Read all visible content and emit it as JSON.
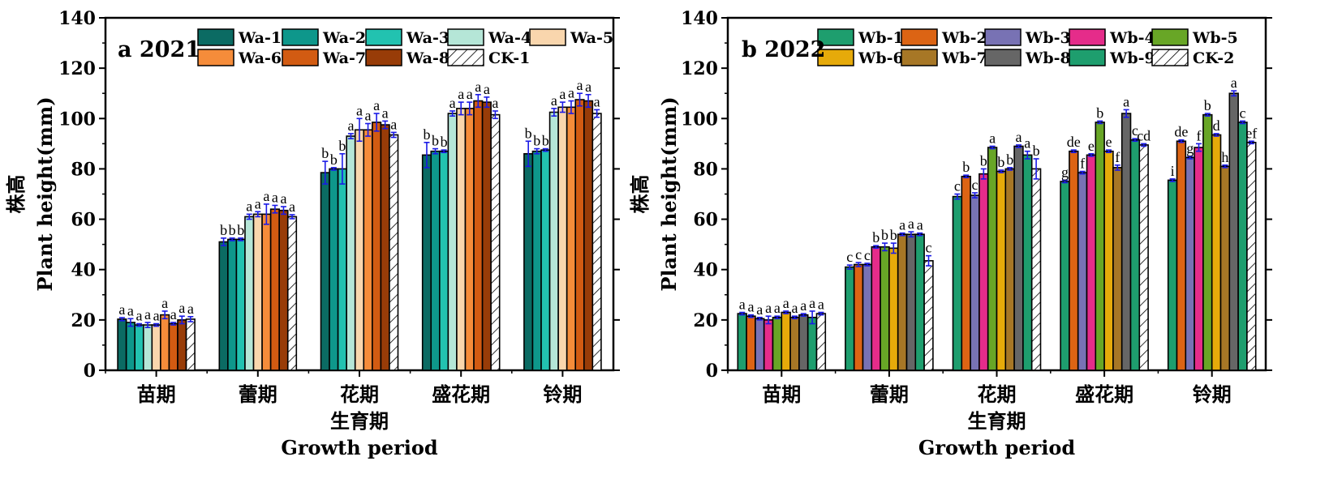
{
  "chart_data": [
    {
      "type": "bar",
      "title": "a 2021",
      "xlabel": "生育期",
      "xlabel_en": "Growth period",
      "ylabel": "株高",
      "ylabel_en": "Plant height(mm)",
      "ylim": [
        0,
        140
      ],
      "yticks": [
        "0",
        "20",
        "40",
        "60",
        "80",
        "100",
        "120",
        "140"
      ],
      "grid": false,
      "legend": "top",
      "categories": [
        "苗期",
        "蕾期",
        "花期",
        "盛花期",
        "铃期"
      ],
      "series": [
        {
          "name": "Wa-1",
          "color": "#0b6b63",
          "pattern": false,
          "values": [
            20.3,
            51.0,
            78.5,
            85.5,
            86.0
          ],
          "errors": [
            0.6,
            1.5,
            4.5,
            5.0,
            5.0
          ],
          "sig": [
            "a",
            "b",
            "b",
            "b",
            "b"
          ]
        },
        {
          "name": "Wa-2",
          "color": "#0e978b",
          "pattern": false,
          "values": [
            19.0,
            52.0,
            80.0,
            87.0,
            87.0
          ],
          "errors": [
            1.5,
            0.5,
            0.5,
            1.0,
            1.0
          ],
          "sig": [
            "a",
            "b",
            "b",
            "b",
            "b"
          ]
        },
        {
          "name": "Wa-3",
          "color": "#22c2b0",
          "pattern": false,
          "values": [
            18.0,
            52.0,
            80.0,
            87.0,
            87.5
          ],
          "errors": [
            0.5,
            0.5,
            6.0,
            0.5,
            0.5
          ],
          "sig": [
            "a",
            "b",
            "b",
            "b",
            "b"
          ]
        },
        {
          "name": "Wa-4",
          "color": "#b5e6d7",
          "pattern": false,
          "values": [
            18.0,
            61.0,
            93.0,
            102.0,
            102.5
          ],
          "errors": [
            1.0,
            1.0,
            1.0,
            1.0,
            1.5
          ],
          "sig": [
            "a",
            "a",
            "a",
            "a",
            "a"
          ]
        },
        {
          "name": "Wa-5",
          "color": "#f9d6ad",
          "pattern": false,
          "values": [
            18.0,
            62.0,
            95.5,
            104.0,
            104.5
          ],
          "errors": [
            0.5,
            1.0,
            4.5,
            2.5,
            2.0
          ],
          "sig": [
            "a",
            "a",
            "a",
            "a",
            "a"
          ]
        },
        {
          "name": "Wa-6",
          "color": "#f58c3a",
          "pattern": false,
          "values": [
            22.0,
            62.0,
            95.5,
            104.0,
            104.5
          ],
          "errors": [
            1.5,
            4.0,
            2.5,
            2.5,
            2.5
          ],
          "sig": [
            "a",
            "a",
            "a",
            "a",
            "a"
          ]
        },
        {
          "name": "Wa-7",
          "color": "#d25b12",
          "pattern": false,
          "values": [
            18.5,
            64.0,
            98.5,
            107.0,
            107.5
          ],
          "errors": [
            0.5,
            1.5,
            3.5,
            2.5,
            2.5
          ],
          "sig": [
            "a",
            "a",
            "a",
            "a",
            "a"
          ]
        },
        {
          "name": "Wa-8",
          "color": "#983c08",
          "pattern": false,
          "values": [
            20.0,
            63.5,
            97.5,
            106.5,
            107.0
          ],
          "errors": [
            1.5,
            1.5,
            1.5,
            2.0,
            2.5
          ],
          "sig": [
            "a",
            "a",
            "a",
            "a",
            "a"
          ]
        },
        {
          "name": "CK-1",
          "color": "#ffffff",
          "pattern": true,
          "values": [
            20.3,
            61.0,
            93.5,
            101.5,
            102.0
          ],
          "errors": [
            1.0,
            0.8,
            1.0,
            1.5,
            1.5
          ],
          "sig": [
            "a",
            "a",
            "a",
            "a",
            "a"
          ]
        }
      ]
    },
    {
      "type": "bar",
      "title": "b 2022",
      "xlabel": "生育期",
      "xlabel_en": "Growth period",
      "ylabel": "株高",
      "ylabel_en": "Plant height(mm)",
      "ylim": [
        0,
        140
      ],
      "yticks": [
        "0",
        "20",
        "40",
        "60",
        "80",
        "100",
        "120",
        "140"
      ],
      "grid": false,
      "legend": "top",
      "categories": [
        "苗期",
        "蕾期",
        "花期",
        "盛花期",
        "铃期"
      ],
      "series": [
        {
          "name": "Wb-1",
          "color": "#1e9e6e",
          "pattern": false,
          "values": [
            22.5,
            41.0,
            69.0,
            75.0,
            75.5
          ],
          "errors": [
            0.5,
            0.8,
            1.0,
            0.5,
            0.5
          ],
          "sig": [
            "a",
            "c",
            "c",
            "g",
            "i"
          ]
        },
        {
          "name": "Wb-2",
          "color": "#dc6414",
          "pattern": false,
          "values": [
            21.5,
            42.0,
            77.0,
            87.0,
            91.0
          ],
          "errors": [
            0.5,
            0.8,
            0.5,
            0.5,
            0.5
          ],
          "sig": [
            "a",
            "c",
            "b",
            "de",
            "de"
          ]
        },
        {
          "name": "Wb-3",
          "color": "#7872b4",
          "pattern": false,
          "values": [
            20.5,
            42.0,
            69.5,
            78.5,
            84.5
          ],
          "errors": [
            0.5,
            0.5,
            1.0,
            0.5,
            0.5
          ],
          "sig": [
            "a",
            "c",
            "c",
            "f",
            "g"
          ]
        },
        {
          "name": "Wb-4",
          "color": "#e52c8a",
          "pattern": false,
          "values": [
            20.0,
            49.0,
            78.0,
            85.5,
            88.5
          ],
          "errors": [
            1.5,
            0.5,
            2.0,
            0.5,
            1.5
          ],
          "sig": [
            "a",
            "b",
            "b",
            "e",
            "f"
          ]
        },
        {
          "name": "Wb-5",
          "color": "#68a626",
          "pattern": false,
          "values": [
            21.0,
            49.0,
            88.5,
            98.5,
            101.5
          ],
          "errors": [
            0.5,
            1.5,
            0.5,
            0.5,
            0.5
          ],
          "sig": [
            "a",
            "b",
            "a",
            "b",
            "b"
          ]
        },
        {
          "name": "Wb-6",
          "color": "#e6aa0a",
          "pattern": false,
          "values": [
            23.0,
            48.5,
            79.0,
            87.0,
            93.5
          ],
          "errors": [
            0.5,
            2.0,
            0.5,
            0.5,
            0.5
          ],
          "sig": [
            "a",
            "b",
            "b",
            "e",
            "d"
          ]
        },
        {
          "name": "Wb-7",
          "color": "#a77726",
          "pattern": false,
          "values": [
            21.0,
            54.0,
            80.0,
            80.5,
            81.0
          ],
          "errors": [
            0.5,
            0.5,
            0.5,
            1.0,
            0.5
          ],
          "sig": [
            "a",
            "a",
            "b",
            "f",
            "h"
          ]
        },
        {
          "name": "Wb-8",
          "color": "#666666",
          "pattern": false,
          "values": [
            22.0,
            54.0,
            89.0,
            102.0,
            110.0
          ],
          "errors": [
            0.5,
            1.0,
            0.5,
            1.5,
            1.0
          ],
          "sig": [
            "a",
            "a",
            "a",
            "a",
            "a"
          ]
        },
        {
          "name": "Wb-9",
          "color": "#1e9e6e",
          "pattern": false,
          "values": [
            21.0,
            54.0,
            85.5,
            91.5,
            98.5
          ],
          "errors": [
            2.5,
            0.5,
            1.5,
            0.5,
            0.5
          ],
          "sig": [
            "a",
            "a",
            "a",
            "c",
            "c"
          ]
        },
        {
          "name": "CK-2",
          "color": "#ffffff",
          "pattern": true,
          "values": [
            22.5,
            43.5,
            80.0,
            89.5,
            90.5
          ],
          "errors": [
            0.5,
            2.0,
            4.0,
            0.5,
            0.5
          ],
          "sig": [
            "a",
            "c",
            "b",
            "cd",
            "ef"
          ]
        }
      ]
    }
  ]
}
